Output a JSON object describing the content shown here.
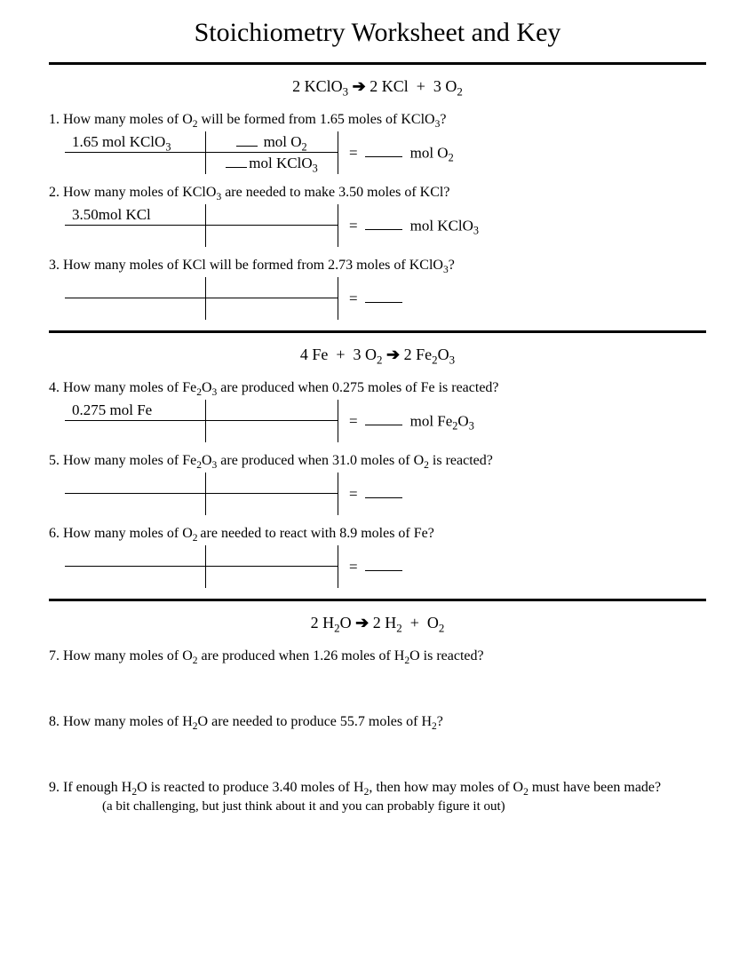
{
  "title": "Stoichiometry Worksheet and Key",
  "sections": [
    {
      "equation_html": "2 KClO<sub>3</sub> <span class='arrow'>➔</span> 2 KCl &nbsp;+ &nbsp;3 O<sub>2</sub>",
      "problems": [
        {
          "num": "1.",
          "text_html": "How many moles of O<sub>2</sub> will be formed from 1.65 moles of KClO<sub>3</sub>?",
          "da": {
            "given_html": "1.65 mol KClO<sub>3</sub>",
            "factor_top_html": "<span class='blank-tiny'></span> mol O<sub>2</sub>",
            "factor_bot_html": "<span class='blank-tiny'></span>mol KClO<sub>3</sub>",
            "answer_unit_html": "mol O<sub>2</sub>"
          }
        },
        {
          "num": "2.",
          "text_html": "How many moles of KClO<sub>3</sub> are needed to make 3.50 moles of KCl?",
          "da": {
            "given_html": "3.50mol KCl",
            "factor_top_html": "",
            "factor_bot_html": "",
            "answer_unit_html": "mol KClO<sub>3</sub>"
          }
        },
        {
          "num": "3.",
          "text_html": "How many moles of KCl will be formed from 2.73 moles of KClO<sub>3</sub>?",
          "da": {
            "given_html": "",
            "factor_top_html": "",
            "factor_bot_html": "",
            "answer_unit_html": ""
          }
        }
      ]
    },
    {
      "equation_html": "4 Fe &nbsp;+ &nbsp;3 O<sub>2</sub> <span class='arrow'>➔</span> 2 Fe<sub>2</sub>O<sub>3</sub>",
      "problems": [
        {
          "num": "4.",
          "text_html": " How many moles of Fe<sub>2</sub>O<sub>3</sub> are produced when 0.275 moles of Fe is reacted?",
          "da": {
            "given_html": "0.275 mol Fe",
            "factor_top_html": "",
            "factor_bot_html": "",
            "answer_unit_html": "mol Fe<sub>2</sub>O<sub>3</sub>"
          }
        },
        {
          "num": "5.",
          "text_html": " How many moles of Fe<sub>2</sub>O<sub>3</sub> are produced when 31.0 moles of O<sub>2</sub> is reacted?",
          "da": {
            "given_html": "",
            "factor_top_html": "",
            "factor_bot_html": "",
            "answer_unit_html": ""
          }
        },
        {
          "num": "6.",
          "text_html": " How many moles of O<sub>2 </sub>are needed to react with 8.9 moles of Fe?",
          "da": {
            "given_html": "",
            "factor_top_html": "",
            "factor_bot_html": "",
            "answer_unit_html": ""
          }
        }
      ]
    },
    {
      "equation_html": "2 H<sub>2</sub>O <span class='arrow'>➔</span> 2 H<sub>2</sub> &nbsp;+ &nbsp;O<sub>2</sub>",
      "problems": [
        {
          "num": "7.",
          "text_html": " How many moles of O<sub>2</sub> are produced when 1.26 moles of H<sub>2</sub>O is reacted?",
          "da": null
        },
        {
          "num": "8.",
          "text_html": " How many moles of H<sub>2</sub>O are needed to produce 55.7 moles of H<sub>2</sub>?",
          "da": null
        },
        {
          "num": "9.",
          "text_html": "If enough H<sub>2</sub>O is reacted to produce 3.40 moles of H<sub>2</sub>, then how may moles of O<sub>2</sub> must have been made?",
          "note": "(a bit challenging, but just think about it and you can probably figure it out)",
          "da": null
        }
      ]
    }
  ]
}
